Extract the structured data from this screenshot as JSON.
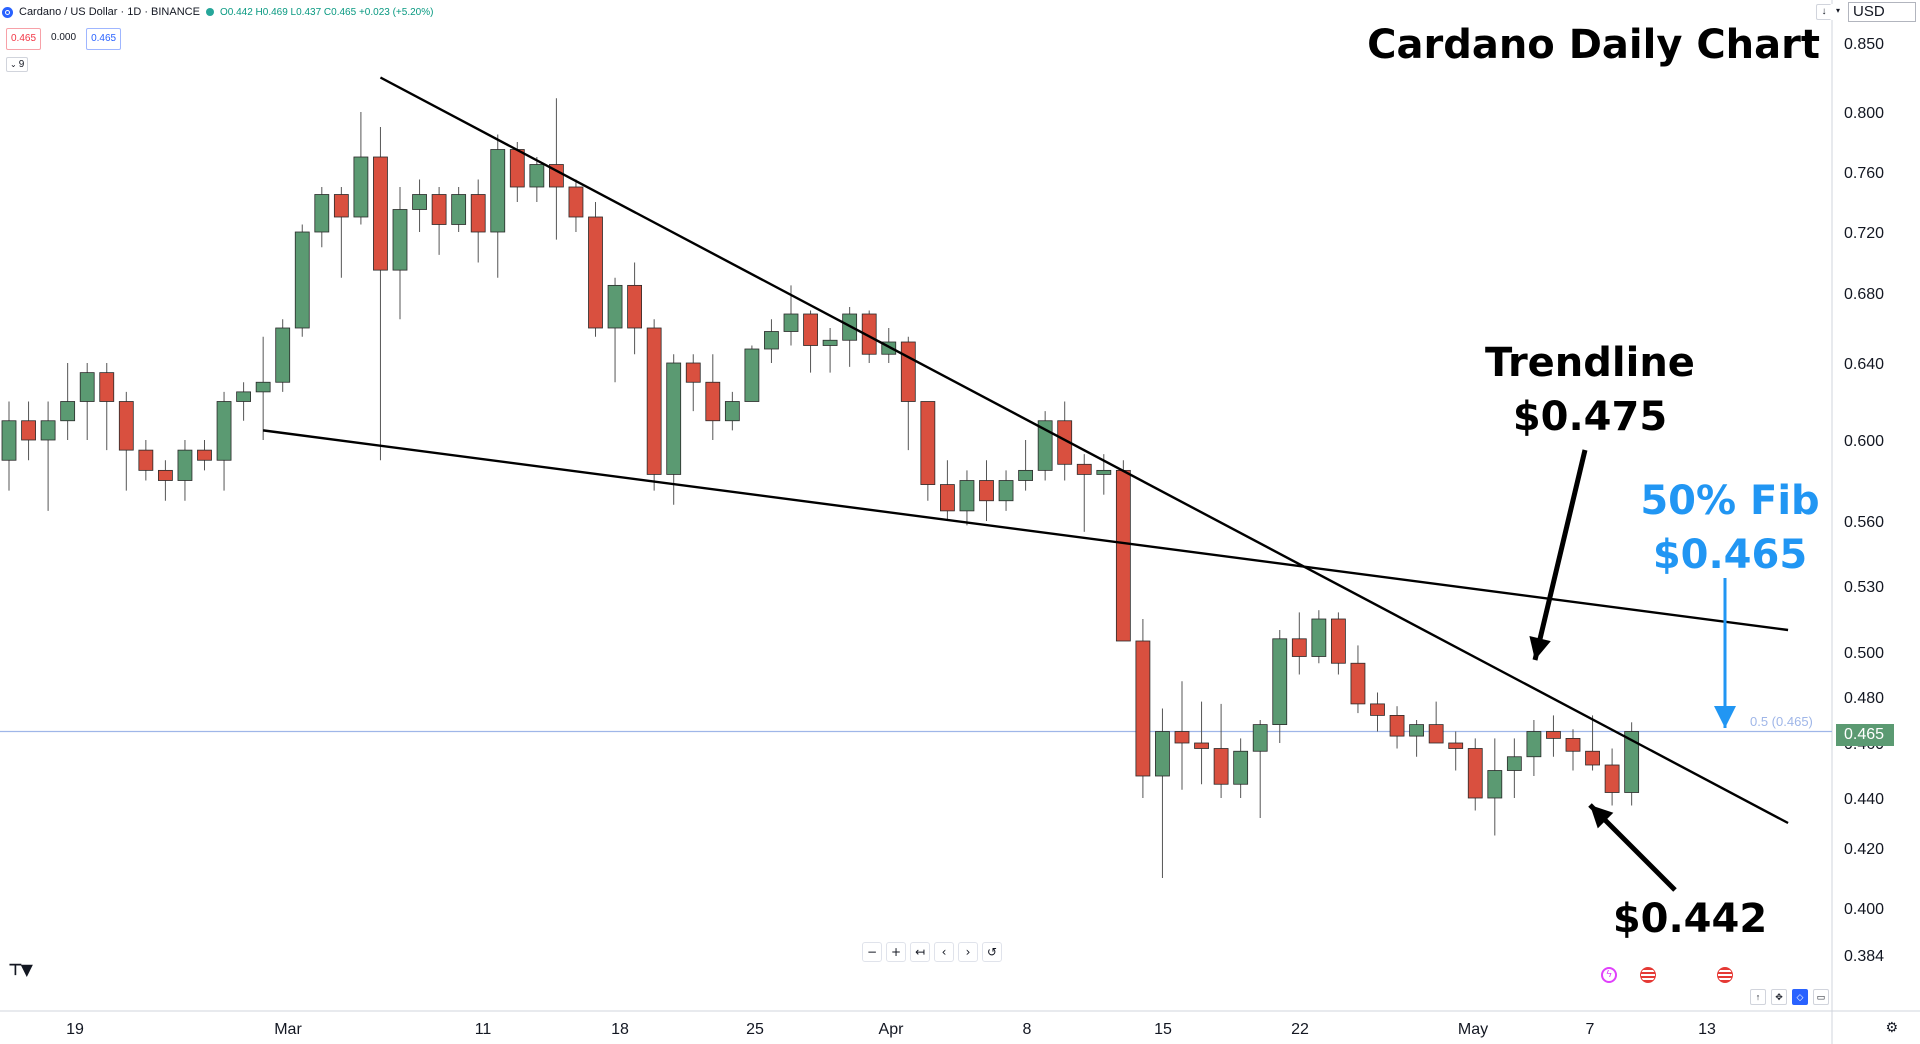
{
  "header": {
    "symbol": "Cardano / US Dollar · 1D · BINANCE",
    "ohlc": "O0.442 H0.469 L0.437 C0.465 +0.023 (+5.20%)",
    "sell_price": "0.465",
    "spread": "0.000",
    "buy_price": "0.465",
    "indicator_count": "9"
  },
  "currency": "USD",
  "title": "Cardano Daily Chart",
  "annotations": {
    "trendline_label": "Trendline",
    "trendline_price": "$0.475",
    "fib_label": "50% Fib",
    "fib_price": "$0.465",
    "low_price": "$0.442"
  },
  "fib_line_label": "0.5 (0.465)",
  "last_price_tag": "0.465",
  "nav_buttons": [
    "−",
    "+",
    "↤",
    "‹",
    "›",
    "↺"
  ],
  "colors": {
    "up": "#5b9a72",
    "down": "#d9503f",
    "fib_line": "#9fb6e8",
    "fib_text": "#2196f3",
    "arrow_black": "#000000"
  },
  "chart_data": {
    "type": "candlestick",
    "title": "Cardano Daily Chart",
    "y_tick_labels": [
      "0.850",
      "0.800",
      "0.760",
      "0.720",
      "0.680",
      "0.640",
      "0.600",
      "0.560",
      "0.530",
      "0.500",
      "0.480",
      "0.460",
      "0.440",
      "0.420",
      "0.400",
      "0.384"
    ],
    "x_tick_labels": [
      "19",
      "Mar",
      "11",
      "18",
      "25",
      "Apr",
      "8",
      "15",
      "22",
      "May",
      "7",
      "13"
    ],
    "ohlc": [
      {
        "o": 0.59,
        "h": 0.62,
        "l": 0.575,
        "c": 0.61
      },
      {
        "o": 0.61,
        "h": 0.62,
        "l": 0.59,
        "c": 0.6
      },
      {
        "o": 0.6,
        "h": 0.62,
        "l": 0.565,
        "c": 0.61
      },
      {
        "o": 0.61,
        "h": 0.64,
        "l": 0.6,
        "c": 0.62
      },
      {
        "o": 0.62,
        "h": 0.64,
        "l": 0.6,
        "c": 0.635
      },
      {
        "o": 0.635,
        "h": 0.64,
        "l": 0.595,
        "c": 0.62
      },
      {
        "o": 0.62,
        "h": 0.625,
        "l": 0.575,
        "c": 0.595
      },
      {
        "o": 0.595,
        "h": 0.6,
        "l": 0.58,
        "c": 0.585
      },
      {
        "o": 0.585,
        "h": 0.59,
        "l": 0.57,
        "c": 0.58
      },
      {
        "o": 0.58,
        "h": 0.6,
        "l": 0.57,
        "c": 0.595
      },
      {
        "o": 0.595,
        "h": 0.6,
        "l": 0.585,
        "c": 0.59
      },
      {
        "o": 0.59,
        "h": 0.625,
        "l": 0.575,
        "c": 0.62
      },
      {
        "o": 0.62,
        "h": 0.63,
        "l": 0.61,
        "c": 0.625
      },
      {
        "o": 0.625,
        "h": 0.655,
        "l": 0.6,
        "c": 0.63
      },
      {
        "o": 0.63,
        "h": 0.665,
        "l": 0.625,
        "c": 0.66
      },
      {
        "o": 0.66,
        "h": 0.725,
        "l": 0.655,
        "c": 0.72
      },
      {
        "o": 0.72,
        "h": 0.75,
        "l": 0.71,
        "c": 0.745
      },
      {
        "o": 0.745,
        "h": 0.75,
        "l": 0.69,
        "c": 0.73
      },
      {
        "o": 0.73,
        "h": 0.8,
        "l": 0.725,
        "c": 0.77
      },
      {
        "o": 0.77,
        "h": 0.79,
        "l": 0.59,
        "c": 0.695
      },
      {
        "o": 0.695,
        "h": 0.75,
        "l": 0.665,
        "c": 0.735
      },
      {
        "o": 0.735,
        "h": 0.755,
        "l": 0.72,
        "c": 0.745
      },
      {
        "o": 0.745,
        "h": 0.75,
        "l": 0.705,
        "c": 0.725
      },
      {
        "o": 0.725,
        "h": 0.75,
        "l": 0.72,
        "c": 0.745
      },
      {
        "o": 0.745,
        "h": 0.755,
        "l": 0.7,
        "c": 0.72
      },
      {
        "o": 0.72,
        "h": 0.785,
        "l": 0.69,
        "c": 0.775
      },
      {
        "o": 0.775,
        "h": 0.78,
        "l": 0.74,
        "c": 0.75
      },
      {
        "o": 0.75,
        "h": 0.77,
        "l": 0.74,
        "c": 0.765
      },
      {
        "o": 0.765,
        "h": 0.81,
        "l": 0.715,
        "c": 0.75
      },
      {
        "o": 0.75,
        "h": 0.755,
        "l": 0.72,
        "c": 0.73
      },
      {
        "o": 0.73,
        "h": 0.74,
        "l": 0.655,
        "c": 0.66
      },
      {
        "o": 0.66,
        "h": 0.69,
        "l": 0.63,
        "c": 0.685
      },
      {
        "o": 0.685,
        "h": 0.7,
        "l": 0.645,
        "c": 0.66
      },
      {
        "o": 0.66,
        "h": 0.665,
        "l": 0.575,
        "c": 0.583
      },
      {
        "o": 0.583,
        "h": 0.645,
        "l": 0.568,
        "c": 0.64
      },
      {
        "o": 0.64,
        "h": 0.645,
        "l": 0.615,
        "c": 0.63
      },
      {
        "o": 0.63,
        "h": 0.645,
        "l": 0.6,
        "c": 0.61
      },
      {
        "o": 0.61,
        "h": 0.625,
        "l": 0.605,
        "c": 0.62
      },
      {
        "o": 0.62,
        "h": 0.65,
        "l": 0.62,
        "c": 0.648
      },
      {
        "o": 0.648,
        "h": 0.665,
        "l": 0.64,
        "c": 0.658
      },
      {
        "o": 0.658,
        "h": 0.685,
        "l": 0.65,
        "c": 0.668
      },
      {
        "o": 0.668,
        "h": 0.67,
        "l": 0.635,
        "c": 0.65
      },
      {
        "o": 0.65,
        "h": 0.66,
        "l": 0.635,
        "c": 0.653
      },
      {
        "o": 0.653,
        "h": 0.672,
        "l": 0.638,
        "c": 0.668
      },
      {
        "o": 0.668,
        "h": 0.67,
        "l": 0.64,
        "c": 0.645
      },
      {
        "o": 0.645,
        "h": 0.66,
        "l": 0.64,
        "c": 0.652
      },
      {
        "o": 0.652,
        "h": 0.655,
        "l": 0.595,
        "c": 0.62
      },
      {
        "o": 0.62,
        "h": 0.62,
        "l": 0.57,
        "c": 0.578
      },
      {
        "o": 0.578,
        "h": 0.59,
        "l": 0.56,
        "c": 0.565
      },
      {
        "o": 0.565,
        "h": 0.585,
        "l": 0.558,
        "c": 0.58
      },
      {
        "o": 0.58,
        "h": 0.59,
        "l": 0.56,
        "c": 0.57
      },
      {
        "o": 0.57,
        "h": 0.585,
        "l": 0.565,
        "c": 0.58
      },
      {
        "o": 0.58,
        "h": 0.6,
        "l": 0.575,
        "c": 0.585
      },
      {
        "o": 0.585,
        "h": 0.615,
        "l": 0.58,
        "c": 0.61
      },
      {
        "o": 0.61,
        "h": 0.62,
        "l": 0.58,
        "c": 0.588
      },
      {
        "o": 0.588,
        "h": 0.593,
        "l": 0.555,
        "c": 0.583
      },
      {
        "o": 0.583,
        "h": 0.593,
        "l": 0.573,
        "c": 0.585
      },
      {
        "o": 0.585,
        "h": 0.59,
        "l": 0.505,
        "c": 0.505
      },
      {
        "o": 0.505,
        "h": 0.515,
        "l": 0.44,
        "c": 0.448
      },
      {
        "o": 0.448,
        "h": 0.475,
        "l": 0.41,
        "c": 0.465
      },
      {
        "o": 0.465,
        "h": 0.487,
        "l": 0.443,
        "c": 0.46
      },
      {
        "o": 0.46,
        "h": 0.478,
        "l": 0.445,
        "c": 0.458
      },
      {
        "o": 0.458,
        "h": 0.477,
        "l": 0.44,
        "c": 0.445
      },
      {
        "o": 0.445,
        "h": 0.462,
        "l": 0.44,
        "c": 0.457
      },
      {
        "o": 0.457,
        "h": 0.47,
        "l": 0.432,
        "c": 0.468
      },
      {
        "o": 0.468,
        "h": 0.51,
        "l": 0.46,
        "c": 0.506
      },
      {
        "o": 0.506,
        "h": 0.518,
        "l": 0.49,
        "c": 0.498
      },
      {
        "o": 0.498,
        "h": 0.519,
        "l": 0.495,
        "c": 0.515
      },
      {
        "o": 0.515,
        "h": 0.518,
        "l": 0.49,
        "c": 0.495
      },
      {
        "o": 0.495,
        "h": 0.503,
        "l": 0.473,
        "c": 0.477
      },
      {
        "o": 0.477,
        "h": 0.482,
        "l": 0.465,
        "c": 0.472
      },
      {
        "o": 0.472,
        "h": 0.476,
        "l": 0.458,
        "c": 0.463
      },
      {
        "o": 0.463,
        "h": 0.47,
        "l": 0.455,
        "c": 0.468
      },
      {
        "o": 0.468,
        "h": 0.478,
        "l": 0.46,
        "c": 0.46
      },
      {
        "o": 0.46,
        "h": 0.465,
        "l": 0.45,
        "c": 0.458
      },
      {
        "o": 0.458,
        "h": 0.462,
        "l": 0.435,
        "c": 0.44
      },
      {
        "o": 0.44,
        "h": 0.462,
        "l": 0.425,
        "c": 0.45
      },
      {
        "o": 0.45,
        "h": 0.462,
        "l": 0.44,
        "c": 0.455
      },
      {
        "o": 0.455,
        "h": 0.47,
        "l": 0.448,
        "c": 0.465
      },
      {
        "o": 0.465,
        "h": 0.472,
        "l": 0.455,
        "c": 0.462
      },
      {
        "o": 0.462,
        "h": 0.466,
        "l": 0.45,
        "c": 0.457
      },
      {
        "o": 0.457,
        "h": 0.472,
        "l": 0.45,
        "c": 0.452
      },
      {
        "o": 0.452,
        "h": 0.458,
        "l": 0.437,
        "c": 0.442
      },
      {
        "o": 0.442,
        "h": 0.469,
        "l": 0.437,
        "c": 0.465
      }
    ],
    "trendlines": [
      {
        "name": "descending resistance",
        "from": {
          "bar": 19,
          "price": 0.825
        },
        "to": {
          "bar": 91,
          "price": 0.43
        }
      },
      {
        "name": "lower channel line",
        "from": {
          "bar": 13,
          "price": 0.605
        },
        "to": {
          "bar": 91,
          "price": 0.51
        }
      }
    ],
    "fib_level": {
      "label": "0.5",
      "price": 0.465
    },
    "last_price": 0.465
  }
}
